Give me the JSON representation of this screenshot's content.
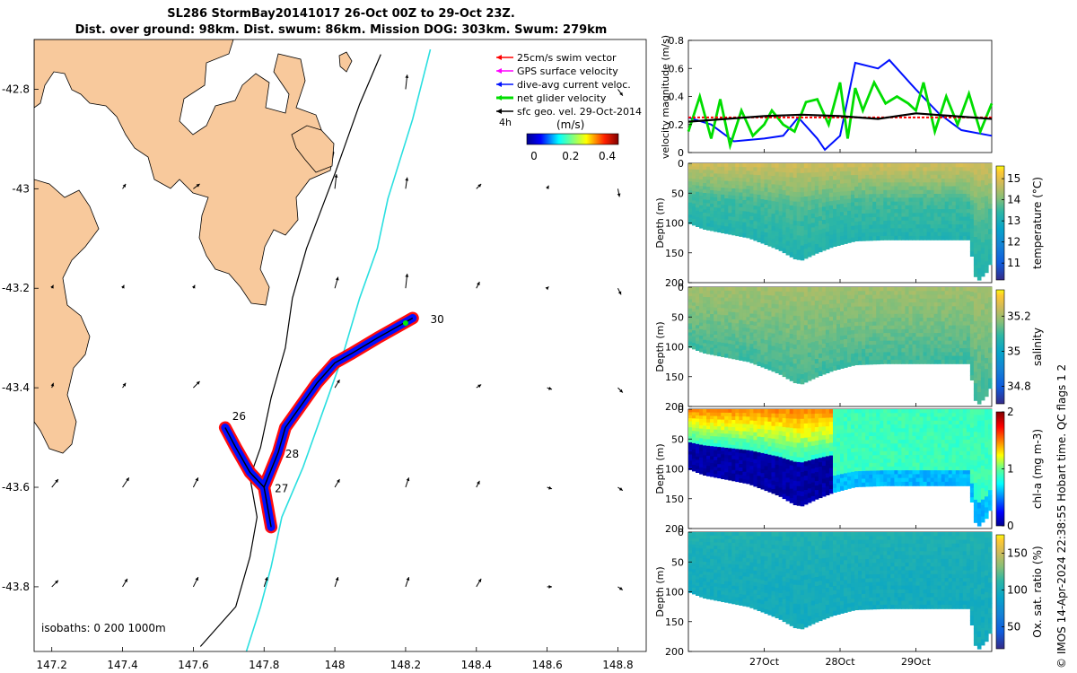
{
  "header": {
    "title_line1": "SL286 StormBay20141017 26-Oct 00Z to 29-Oct 23Z.",
    "title_line2": "Dist. over ground: 98km. Dist. swum: 86km. Mission DOG: 303km. Swum: 279km"
  },
  "credit": "© IMOS 14-Apr-2024 22:38:55 Hobart time. QC flags 1  2",
  "colors": {
    "land": "#f8c99c",
    "track_red": "#ff0000",
    "track_blue": "#0010ff",
    "green": "#00ee00",
    "cyan": "#2adfe0",
    "arrow": "#000000"
  },
  "chart_data": [
    {
      "type": "map",
      "xlabel": "",
      "ylabel": "",
      "xlim": [
        147.15,
        148.88
      ],
      "ylim": [
        -43.93,
        -42.7
      ],
      "x_ticks": [
        "147.2",
        "147.4",
        "147.6",
        "147.8",
        "148",
        "148.2",
        "148.4",
        "148.6",
        "148.8"
      ],
      "x_tick_values": [
        147.2,
        147.4,
        147.6,
        147.8,
        148.0,
        148.2,
        148.4,
        148.6,
        148.8
      ],
      "y_ticks": [
        "-42.8",
        "-43",
        "-43.2",
        "-43.4",
        "-43.6",
        "-43.8"
      ],
      "y_tick_values": [
        -42.8,
        -43.0,
        -43.2,
        -43.4,
        -43.6,
        -43.8
      ],
      "legend": [
        {
          "label": "25cm/s swim vector",
          "color": "#ff0000"
        },
        {
          "label": "GPS surface velocity",
          "color": "#ff00ff"
        },
        {
          "label": "dive-avg current veloc.",
          "color": "#0010ff"
        },
        {
          "label": "net glider velocity",
          "color": "#00dd00"
        },
        {
          "label": "sfc geo. vel. 29-Oct-2014",
          "color": "#000000"
        }
      ],
      "legend_extra": "4h",
      "colorbar": {
        "label": "(m/s)",
        "ticks": [
          "0",
          "0.2",
          "0.4"
        ],
        "range": [
          0,
          0.5
        ]
      },
      "isobath_note": "isobaths: 0   200  1000m",
      "track_day_labels": [
        {
          "label": "26",
          "lon": 147.71,
          "lat": -43.465
        },
        {
          "label": "27",
          "lon": 147.83,
          "lat": -43.61
        },
        {
          "label": "28",
          "lon": 147.86,
          "lat": -43.54
        },
        {
          "label": "30",
          "lon": 148.27,
          "lat": -43.27
        }
      ],
      "track": [
        [
          147.69,
          -43.48
        ],
        [
          147.72,
          -43.52
        ],
        [
          147.76,
          -43.57
        ],
        [
          147.8,
          -43.6
        ],
        [
          147.81,
          -43.64
        ],
        [
          147.82,
          -43.68
        ],
        [
          147.8,
          -43.6
        ],
        [
          147.84,
          -43.53
        ],
        [
          147.86,
          -43.48
        ],
        [
          147.9,
          -43.44
        ],
        [
          147.95,
          -43.39
        ],
        [
          148.0,
          -43.35
        ],
        [
          148.05,
          -43.33
        ],
        [
          148.12,
          -43.3
        ],
        [
          148.22,
          -43.26
        ]
      ],
      "isobath_200": [
        [
          148.13,
          -42.73
        ],
        [
          148.07,
          -42.83
        ],
        [
          148.0,
          -42.97
        ],
        [
          147.92,
          -43.12
        ],
        [
          147.88,
          -43.22
        ],
        [
          147.86,
          -43.32
        ],
        [
          147.82,
          -43.42
        ],
        [
          147.79,
          -43.52
        ],
        [
          147.76,
          -43.58
        ],
        [
          147.78,
          -43.66
        ],
        [
          147.76,
          -43.74
        ],
        [
          147.72,
          -43.84
        ],
        [
          147.62,
          -43.92
        ]
      ],
      "isobath_1000": [
        [
          148.27,
          -42.72
        ],
        [
          148.22,
          -42.86
        ],
        [
          148.15,
          -43.02
        ],
        [
          148.12,
          -43.12
        ],
        [
          148.07,
          -43.22
        ],
        [
          148.02,
          -43.34
        ],
        [
          147.97,
          -43.44
        ],
        [
          147.91,
          -43.56
        ],
        [
          147.85,
          -43.66
        ],
        [
          147.82,
          -43.76
        ],
        [
          147.79,
          -43.84
        ],
        [
          147.75,
          -43.93
        ]
      ],
      "current_arrows": [
        {
          "lon": 148.2,
          "lat": -42.8,
          "u": 0.1,
          "v": 0.9
        },
        {
          "lon": 148.8,
          "lat": -42.8,
          "u": 0.3,
          "v": -0.4
        },
        {
          "lon": 147.4,
          "lat": -43.0,
          "u": 0.2,
          "v": 0.3
        },
        {
          "lon": 147.6,
          "lat": -43.0,
          "u": 0.4,
          "v": 0.3
        },
        {
          "lon": 148.0,
          "lat": -43.0,
          "u": 0.1,
          "v": 0.9
        },
        {
          "lon": 148.2,
          "lat": -43.0,
          "u": 0.1,
          "v": 0.7
        },
        {
          "lon": 148.4,
          "lat": -43.0,
          "u": 0.3,
          "v": 0.3
        },
        {
          "lon": 148.6,
          "lat": -43.0,
          "u": 0.1,
          "v": 0.2
        },
        {
          "lon": 148.8,
          "lat": -43.0,
          "u": 0.1,
          "v": -0.5
        },
        {
          "lon": 147.2,
          "lat": -43.2,
          "u": 0.1,
          "v": 0.2
        },
        {
          "lon": 147.4,
          "lat": -43.2,
          "u": 0.1,
          "v": 0.2
        },
        {
          "lon": 147.6,
          "lat": -43.2,
          "u": 0.1,
          "v": 0.2
        },
        {
          "lon": 148.0,
          "lat": -43.2,
          "u": 0.2,
          "v": 0.7
        },
        {
          "lon": 148.2,
          "lat": -43.2,
          "u": 0.1,
          "v": 0.9
        },
        {
          "lon": 148.4,
          "lat": -43.2,
          "u": 0.2,
          "v": 0.4
        },
        {
          "lon": 148.6,
          "lat": -43.2,
          "u": 0.1,
          "v": 0.1
        },
        {
          "lon": 148.8,
          "lat": -43.2,
          "u": 0.2,
          "v": -0.4
        },
        {
          "lon": 147.2,
          "lat": -43.4,
          "u": 0.1,
          "v": 0.3
        },
        {
          "lon": 147.4,
          "lat": -43.4,
          "u": 0.2,
          "v": 0.3
        },
        {
          "lon": 147.6,
          "lat": -43.4,
          "u": 0.4,
          "v": 0.4
        },
        {
          "lon": 148.0,
          "lat": -43.4,
          "u": 0.3,
          "v": 0.5
        },
        {
          "lon": 148.4,
          "lat": -43.4,
          "u": 0.3,
          "v": 0.2
        },
        {
          "lon": 148.6,
          "lat": -43.4,
          "u": 0.3,
          "v": -0.1
        },
        {
          "lon": 148.8,
          "lat": -43.4,
          "u": 0.3,
          "v": -0.3
        },
        {
          "lon": 147.2,
          "lat": -43.6,
          "u": 0.4,
          "v": 0.5
        },
        {
          "lon": 147.4,
          "lat": -43.6,
          "u": 0.4,
          "v": 0.6
        },
        {
          "lon": 147.6,
          "lat": -43.6,
          "u": 0.3,
          "v": 0.6
        },
        {
          "lon": 147.8,
          "lat": -43.6,
          "u": 0.3,
          "v": 0.5
        },
        {
          "lon": 148.0,
          "lat": -43.6,
          "u": 0.3,
          "v": 0.5
        },
        {
          "lon": 148.2,
          "lat": -43.6,
          "u": 0.2,
          "v": 0.6
        },
        {
          "lon": 148.4,
          "lat": -43.6,
          "u": 0.2,
          "v": 0.4
        },
        {
          "lon": 148.6,
          "lat": -43.6,
          "u": 0.3,
          "v": -0.1
        },
        {
          "lon": 148.8,
          "lat": -43.6,
          "u": 0.3,
          "v": -0.2
        },
        {
          "lon": 147.2,
          "lat": -43.8,
          "u": 0.4,
          "v": 0.4
        },
        {
          "lon": 147.4,
          "lat": -43.8,
          "u": 0.3,
          "v": 0.5
        },
        {
          "lon": 147.6,
          "lat": -43.8,
          "u": 0.3,
          "v": 0.6
        },
        {
          "lon": 147.8,
          "lat": -43.8,
          "u": 0.2,
          "v": 0.6
        },
        {
          "lon": 148.0,
          "lat": -43.8,
          "u": 0.2,
          "v": 0.6
        },
        {
          "lon": 148.2,
          "lat": -43.8,
          "u": 0.2,
          "v": 0.6
        },
        {
          "lon": 148.4,
          "lat": -43.8,
          "u": 0.3,
          "v": 0.5
        },
        {
          "lon": 148.6,
          "lat": -43.8,
          "u": 0.3,
          "v": 0.0
        },
        {
          "lon": 148.8,
          "lat": -43.8,
          "u": 0.3,
          "v": -0.2
        }
      ]
    },
    {
      "type": "line",
      "ylabel": "velocity magnitude (m/s)",
      "ylim": [
        0,
        0.8
      ],
      "y_ticks": [
        "0",
        "0.2",
        "0.4",
        "0.6",
        "0.8"
      ],
      "y_tick_values": [
        0,
        0.2,
        0.4,
        0.6,
        0.8
      ],
      "xlim": [
        26.0,
        30.0
      ],
      "series": [
        {
          "name": "dive-avg current veloc.",
          "color": "#0010ff",
          "x": [
            26.0,
            26.3,
            26.6,
            27.0,
            27.25,
            27.45,
            27.7,
            27.8,
            28.0,
            28.2,
            28.5,
            28.65,
            29.0,
            29.3,
            29.6,
            30.0
          ],
          "values": [
            0.25,
            0.2,
            0.08,
            0.1,
            0.12,
            0.25,
            0.1,
            0.02,
            0.12,
            0.64,
            0.6,
            0.66,
            0.45,
            0.28,
            0.16,
            0.12
          ]
        },
        {
          "name": "net glider velocity",
          "color": "#00dd00",
          "x": [
            26.0,
            26.15,
            26.3,
            26.42,
            26.55,
            26.7,
            26.85,
            27.0,
            27.1,
            27.25,
            27.4,
            27.55,
            27.7,
            27.85,
            28.0,
            28.1,
            28.2,
            28.3,
            28.45,
            28.6,
            28.75,
            28.9,
            29.0,
            29.1,
            29.25,
            29.4,
            29.55,
            29.7,
            29.85,
            30.0
          ],
          "values": [
            0.15,
            0.4,
            0.1,
            0.38,
            0.05,
            0.3,
            0.12,
            0.2,
            0.3,
            0.2,
            0.15,
            0.36,
            0.38,
            0.2,
            0.5,
            0.1,
            0.46,
            0.3,
            0.5,
            0.35,
            0.4,
            0.35,
            0.3,
            0.5,
            0.15,
            0.4,
            0.2,
            0.42,
            0.15,
            0.35
          ]
        },
        {
          "name": "25cm/s swim vector",
          "color": "#ff0000",
          "x": [
            26.0,
            30.0
          ],
          "values": [
            0.25,
            0.25
          ]
        },
        {
          "name": "sfc geo. vel.",
          "color": "#000000",
          "x": [
            26.0,
            26.5,
            27.0,
            27.5,
            28.0,
            28.5,
            29.0,
            29.5,
            30.0
          ],
          "values": [
            0.22,
            0.24,
            0.26,
            0.27,
            0.26,
            0.24,
            0.28,
            0.26,
            0.24
          ]
        }
      ]
    },
    {
      "type": "heatmap",
      "ylabel": "Depth (m)",
      "colorbar_label": "temperature (°C)",
      "ylim": [
        200,
        0
      ],
      "y_ticks": [
        "0",
        "50",
        "100",
        "150",
        "200"
      ],
      "y_tick_values": [
        0,
        50,
        100,
        150,
        200
      ],
      "cbar_range": [
        10.2,
        15.6
      ],
      "cbar_ticks": [
        "15",
        "14",
        "13",
        "12",
        "11"
      ],
      "cbar_tick_values": [
        15,
        14,
        13,
        12,
        11
      ],
      "colormap": "parula",
      "surface_value": 14.8,
      "mid_value": 13.6,
      "deep_value": 13.2
    },
    {
      "type": "heatmap",
      "ylabel": "Depth (m)",
      "colorbar_label": "salinity",
      "ylim": [
        200,
        0
      ],
      "y_ticks": [
        "0",
        "50",
        "100",
        "150",
        "200"
      ],
      "y_tick_values": [
        0,
        50,
        100,
        150,
        200
      ],
      "cbar_range": [
        34.7,
        35.35
      ],
      "cbar_ticks": [
        "35.2",
        "35",
        "34.8"
      ],
      "cbar_tick_values": [
        35.2,
        35.0,
        34.8
      ],
      "colormap": "parula",
      "surface_value": 35.2,
      "mid_value": 35.15,
      "deep_value": 35.1
    },
    {
      "type": "heatmap",
      "ylabel": "Depth (m)",
      "colorbar_label": "chl-a (mg m-3)",
      "ylim": [
        200,
        0
      ],
      "y_ticks": [
        "0",
        "50",
        "100",
        "150",
        "200"
      ],
      "y_tick_values": [
        0,
        50,
        100,
        150,
        200
      ],
      "cbar_range": [
        0,
        2
      ],
      "cbar_ticks": [
        "2",
        "1",
        "0"
      ],
      "cbar_tick_values": [
        2,
        1,
        0
      ],
      "colormap": "parula",
      "surface_value": 1.5,
      "mid_value": 0.9,
      "deep_value": 0.1
    },
    {
      "type": "heatmap",
      "ylabel": "Depth (m)",
      "colorbar_label": "Ox. sat. ratio (%)",
      "ylim": [
        200,
        0
      ],
      "y_ticks": [
        "0",
        "50",
        "100",
        "150",
        "200"
      ],
      "y_tick_values": [
        0,
        50,
        100,
        150,
        200
      ],
      "cbar_range": [
        20,
        175
      ],
      "cbar_ticks": [
        "150",
        "100",
        "50"
      ],
      "cbar_tick_values": [
        150,
        100,
        50
      ],
      "colormap": "parula",
      "surface_value": 105,
      "mid_value": 100,
      "deep_value": 98
    }
  ],
  "time_axis": {
    "xlim": [
      26.0,
      30.0
    ],
    "ticks": [
      "27Oct",
      "28Oct",
      "29Oct"
    ],
    "tick_values": [
      27.0,
      28.0,
      29.0
    ]
  },
  "section_bottom_depth": [
    {
      "t": 26.0,
      "d": 100
    },
    {
      "t": 26.2,
      "d": 110
    },
    {
      "t": 26.4,
      "d": 115
    },
    {
      "t": 26.6,
      "d": 120
    },
    {
      "t": 26.8,
      "d": 125
    },
    {
      "t": 27.0,
      "d": 135
    },
    {
      "t": 27.2,
      "d": 145
    },
    {
      "t": 27.4,
      "d": 160
    },
    {
      "t": 27.5,
      "d": 162
    },
    {
      "t": 27.7,
      "d": 150
    },
    {
      "t": 27.9,
      "d": 140
    },
    {
      "t": 28.2,
      "d": 130
    },
    {
      "t": 28.6,
      "d": 128
    },
    {
      "t": 29.0,
      "d": 128
    },
    {
      "t": 29.4,
      "d": 128
    },
    {
      "t": 29.7,
      "d": 128
    },
    {
      "t": 29.8,
      "d": 200
    },
    {
      "t": 29.95,
      "d": 180
    },
    {
      "t": 30.0,
      "d": 160
    }
  ]
}
